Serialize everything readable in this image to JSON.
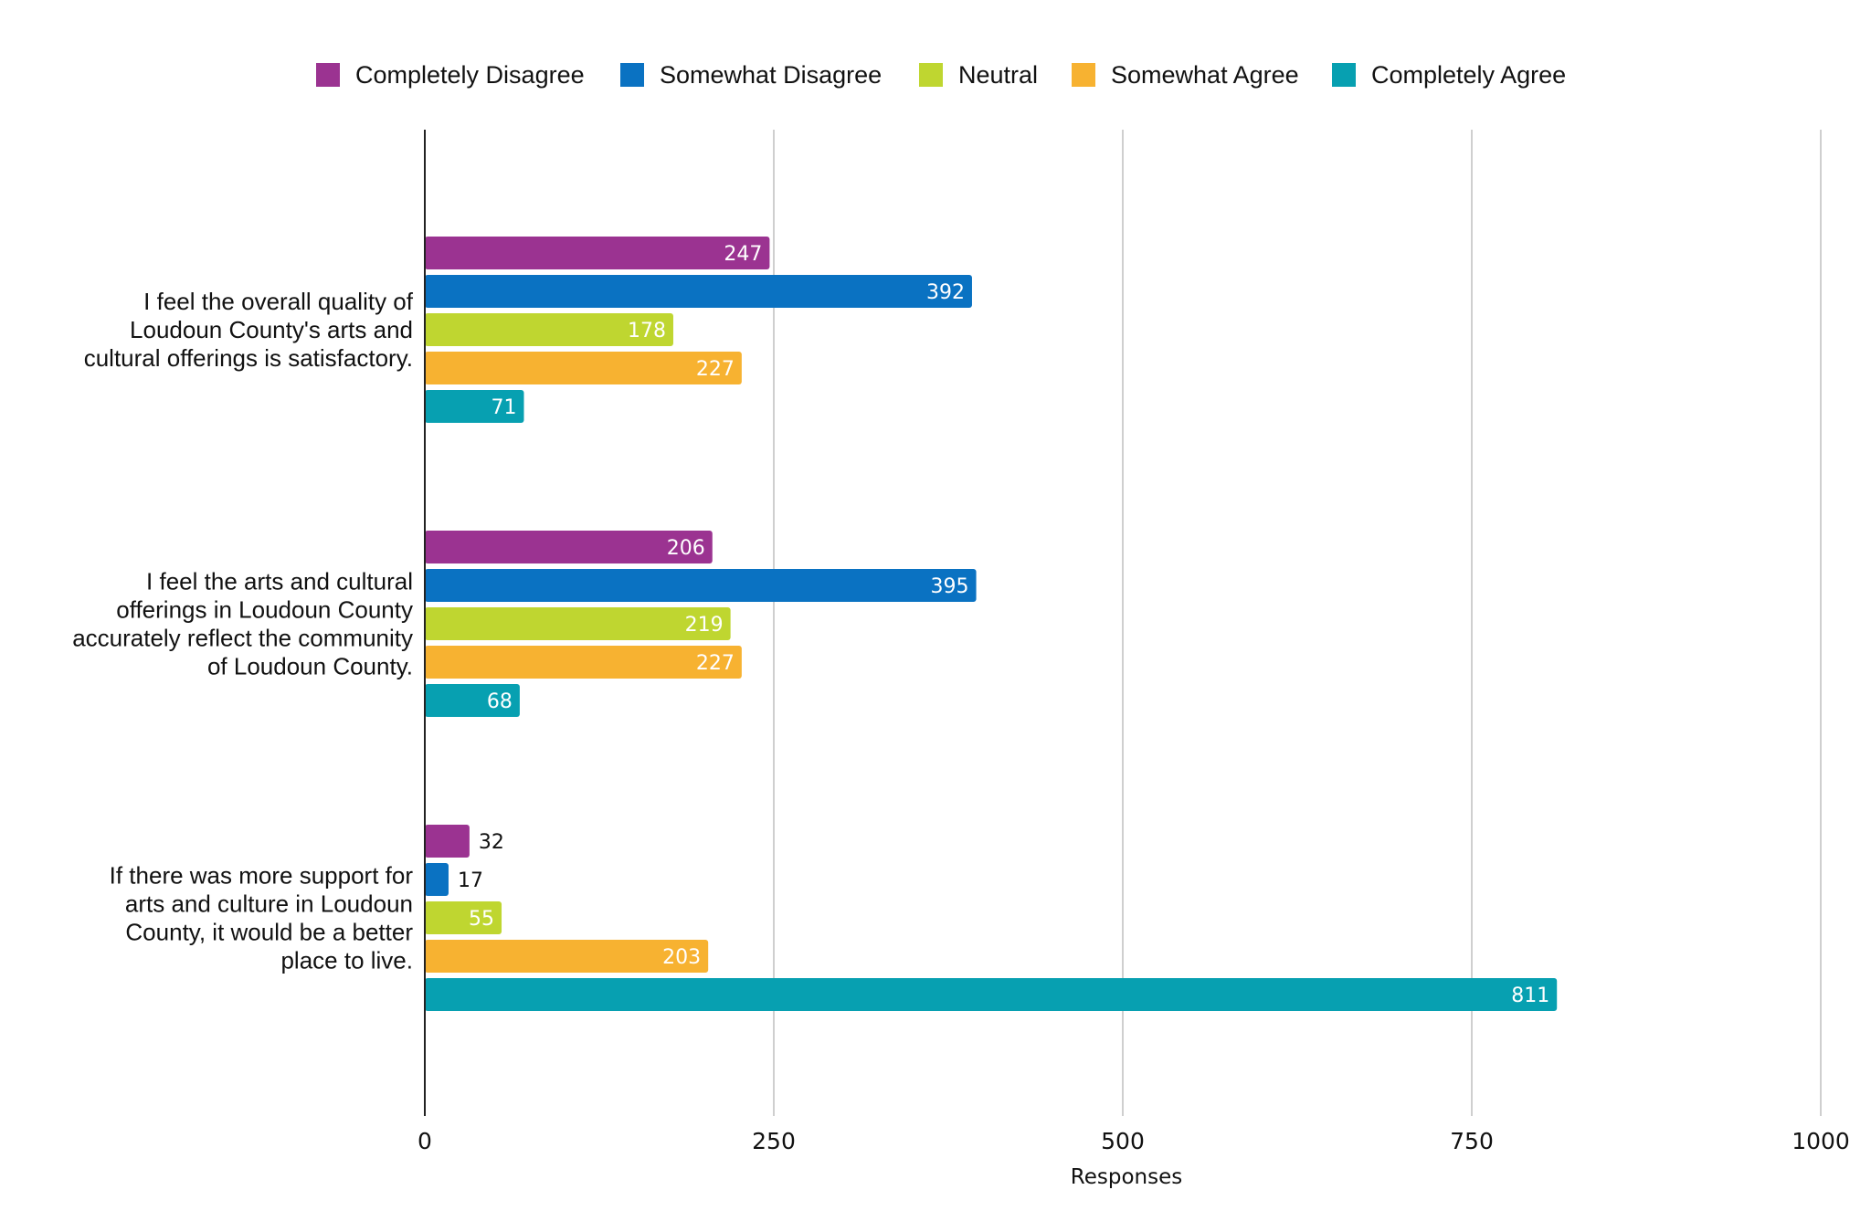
{
  "chart_data": {
    "type": "bar",
    "orientation": "horizontal",
    "xlabel": "Responses",
    "ylabel": "",
    "xlim": [
      0,
      1000
    ],
    "xticks": [
      0,
      250,
      500,
      750,
      1000
    ],
    "tick_labels": [
      "0",
      "250",
      "500",
      "750",
      "1000"
    ],
    "legend_position": "top-center",
    "grid": true,
    "categories": [
      [
        "I feel the overall quality of",
        "Loudoun County's arts and",
        "cultural offerings is satisfactory."
      ],
      [
        "I feel the arts and cultural",
        "offerings in Loudoun County",
        "accurately reflect the community",
        "of Loudoun County."
      ],
      [
        "If there was more support for",
        "arts and culture in Loudoun",
        "County, it would be a better",
        "place to live."
      ]
    ],
    "series": [
      {
        "name": "Completely Disagree",
        "color": "#9b3391",
        "values": [
          247,
          206,
          32
        ]
      },
      {
        "name": "Somewhat Disagree",
        "color": "#0a72c2",
        "values": [
          392,
          395,
          17
        ]
      },
      {
        "name": "Neutral",
        "color": "#bfd630",
        "values": [
          178,
          219,
          55
        ]
      },
      {
        "name": "Somewhat Agree",
        "color": "#f7b231",
        "values": [
          227,
          227,
          203
        ]
      },
      {
        "name": "Completely Agree",
        "color": "#07a0b1",
        "values": [
          71,
          68,
          811
        ]
      }
    ]
  }
}
